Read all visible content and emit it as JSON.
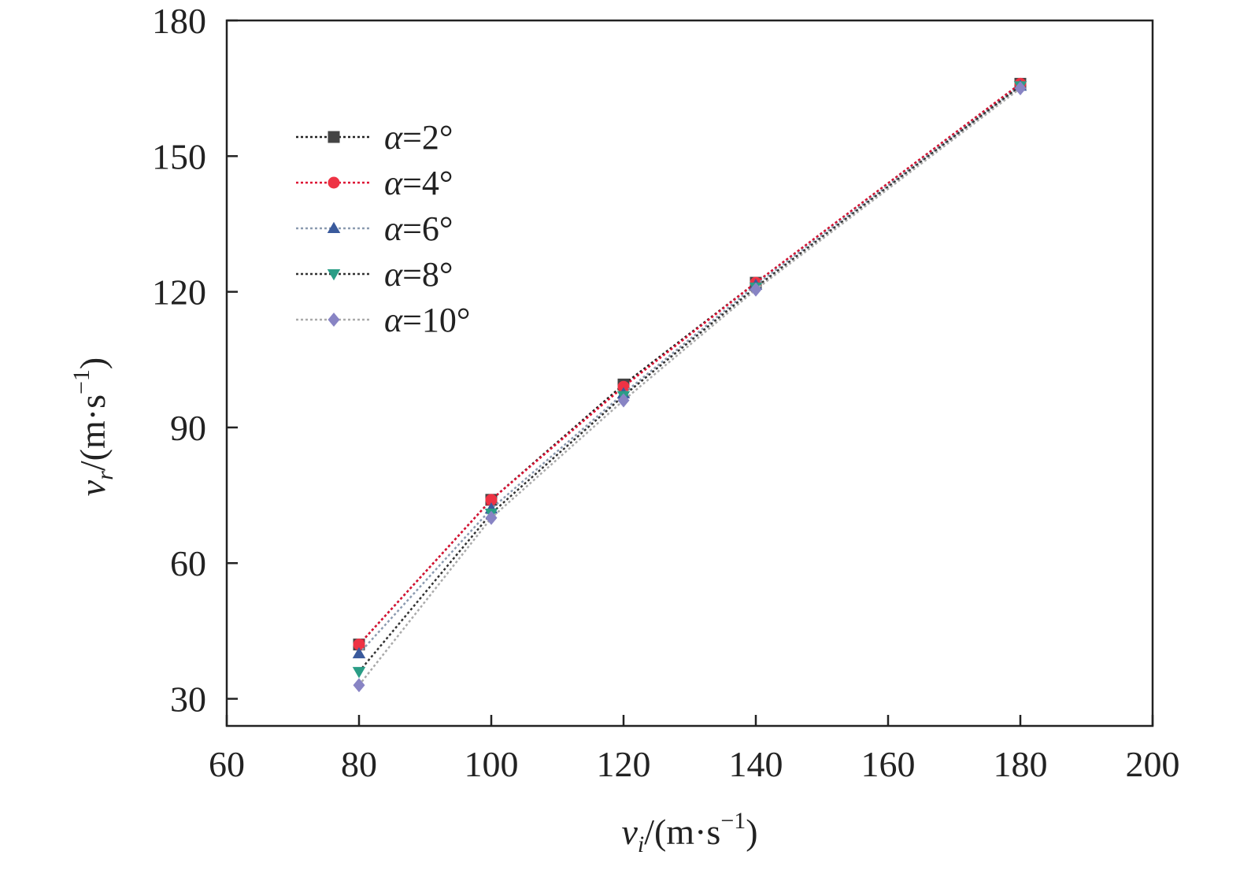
{
  "chart_data": {
    "type": "line",
    "x_unit": "/(m·s",
    "y_unit": "/(m·s",
    "unit_exponent": "−1",
    "unit_close": ")",
    "xlabel": {
      "var": "v",
      "sub": "i"
    },
    "ylabel": {
      "var": "v",
      "sub": "r"
    },
    "xlim": [
      60,
      200
    ],
    "ylim": [
      24,
      180
    ],
    "xticks": [
      60,
      80,
      100,
      120,
      140,
      160,
      180,
      200
    ],
    "yticks": [
      30,
      60,
      90,
      120,
      150,
      180
    ],
    "grid": false,
    "legend_position": "upper-left",
    "x": [
      80,
      100,
      120,
      140,
      180
    ],
    "series": [
      {
        "name": "α=2°",
        "symbol": "α",
        "label_rest": "=2°",
        "marker": "square",
        "color": "#444444",
        "line_color": "#222222",
        "values": [
          42,
          74,
          99.5,
          122,
          166
        ]
      },
      {
        "name": "α=4°",
        "symbol": "α",
        "label_rest": "=4°",
        "marker": "circle",
        "color": "#ee3344",
        "line_color": "#dd1133",
        "values": [
          42,
          74,
          99,
          122,
          166
        ]
      },
      {
        "name": "α=6°",
        "symbol": "α",
        "label_rest": "=6°",
        "marker": "triangle-up",
        "color": "#3a5a9c",
        "line_color": "#8c9bb0",
        "values": [
          40,
          72,
          97.5,
          121.5,
          165.5
        ]
      },
      {
        "name": "α=8°",
        "symbol": "α",
        "label_rest": "=8°",
        "marker": "triangle-down",
        "color": "#2a9d86",
        "line_color": "#333333",
        "values": [
          36,
          71,
          97,
          121,
          165.5
        ]
      },
      {
        "name": "α=10°",
        "symbol": "α",
        "label_rest": "=10°",
        "marker": "diamond",
        "color": "#8884c4",
        "line_color": "#aaaaaa",
        "values": [
          33,
          70,
          96,
          120.5,
          165
        ]
      }
    ]
  }
}
